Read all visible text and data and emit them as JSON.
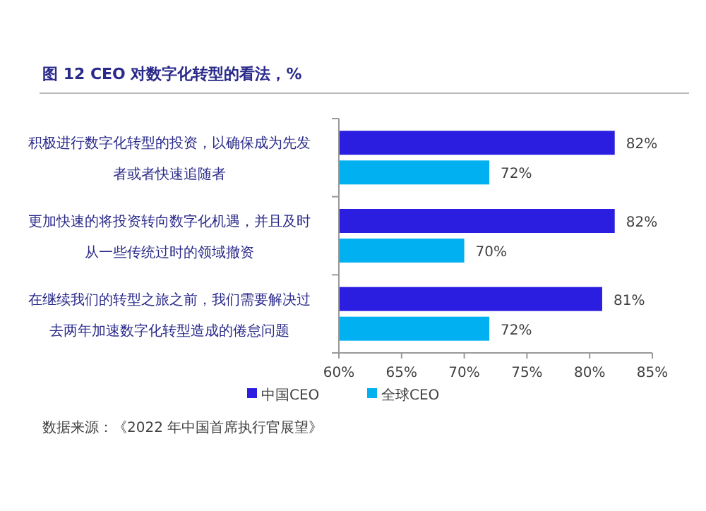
{
  "chart_data": {
    "type": "bar",
    "orientation": "horizontal",
    "title": "图 12 CEO 对数字化转型的看法，%",
    "categories": [
      "积极进行数字化转型的投资，以确保成为先发者或者快速追随者",
      "更加快速的将投资转向数字化机遇，并且及时从一些传统过时的领域撤资",
      "在继续我们的转型之旅之前，我们需要解决过去两年加速数字化转型造成的倦怠问题"
    ],
    "series": [
      {
        "name": "中国CEO",
        "color": "#2b1ee0",
        "values": [
          82,
          82,
          81
        ],
        "value_labels": [
          "82%",
          "82%",
          "81%"
        ]
      },
      {
        "name": "全球CEO",
        "color": "#00b0f0",
        "values": [
          72,
          70,
          72
        ],
        "value_labels": [
          "72%",
          "70%",
          "72%"
        ]
      }
    ],
    "xlim": [
      60,
      85
    ],
    "xticks": [
      {
        "value": 60,
        "label": "60%"
      },
      {
        "value": 65,
        "label": "65%"
      },
      {
        "value": 70,
        "label": "70%"
      },
      {
        "value": 75,
        "label": "75%"
      },
      {
        "value": 80,
        "label": "80%"
      },
      {
        "value": 85,
        "label": "85%"
      }
    ],
    "legend": "bottom",
    "annotations": [
      "数据来源：《2022 年中国首席执行官展望》"
    ]
  }
}
